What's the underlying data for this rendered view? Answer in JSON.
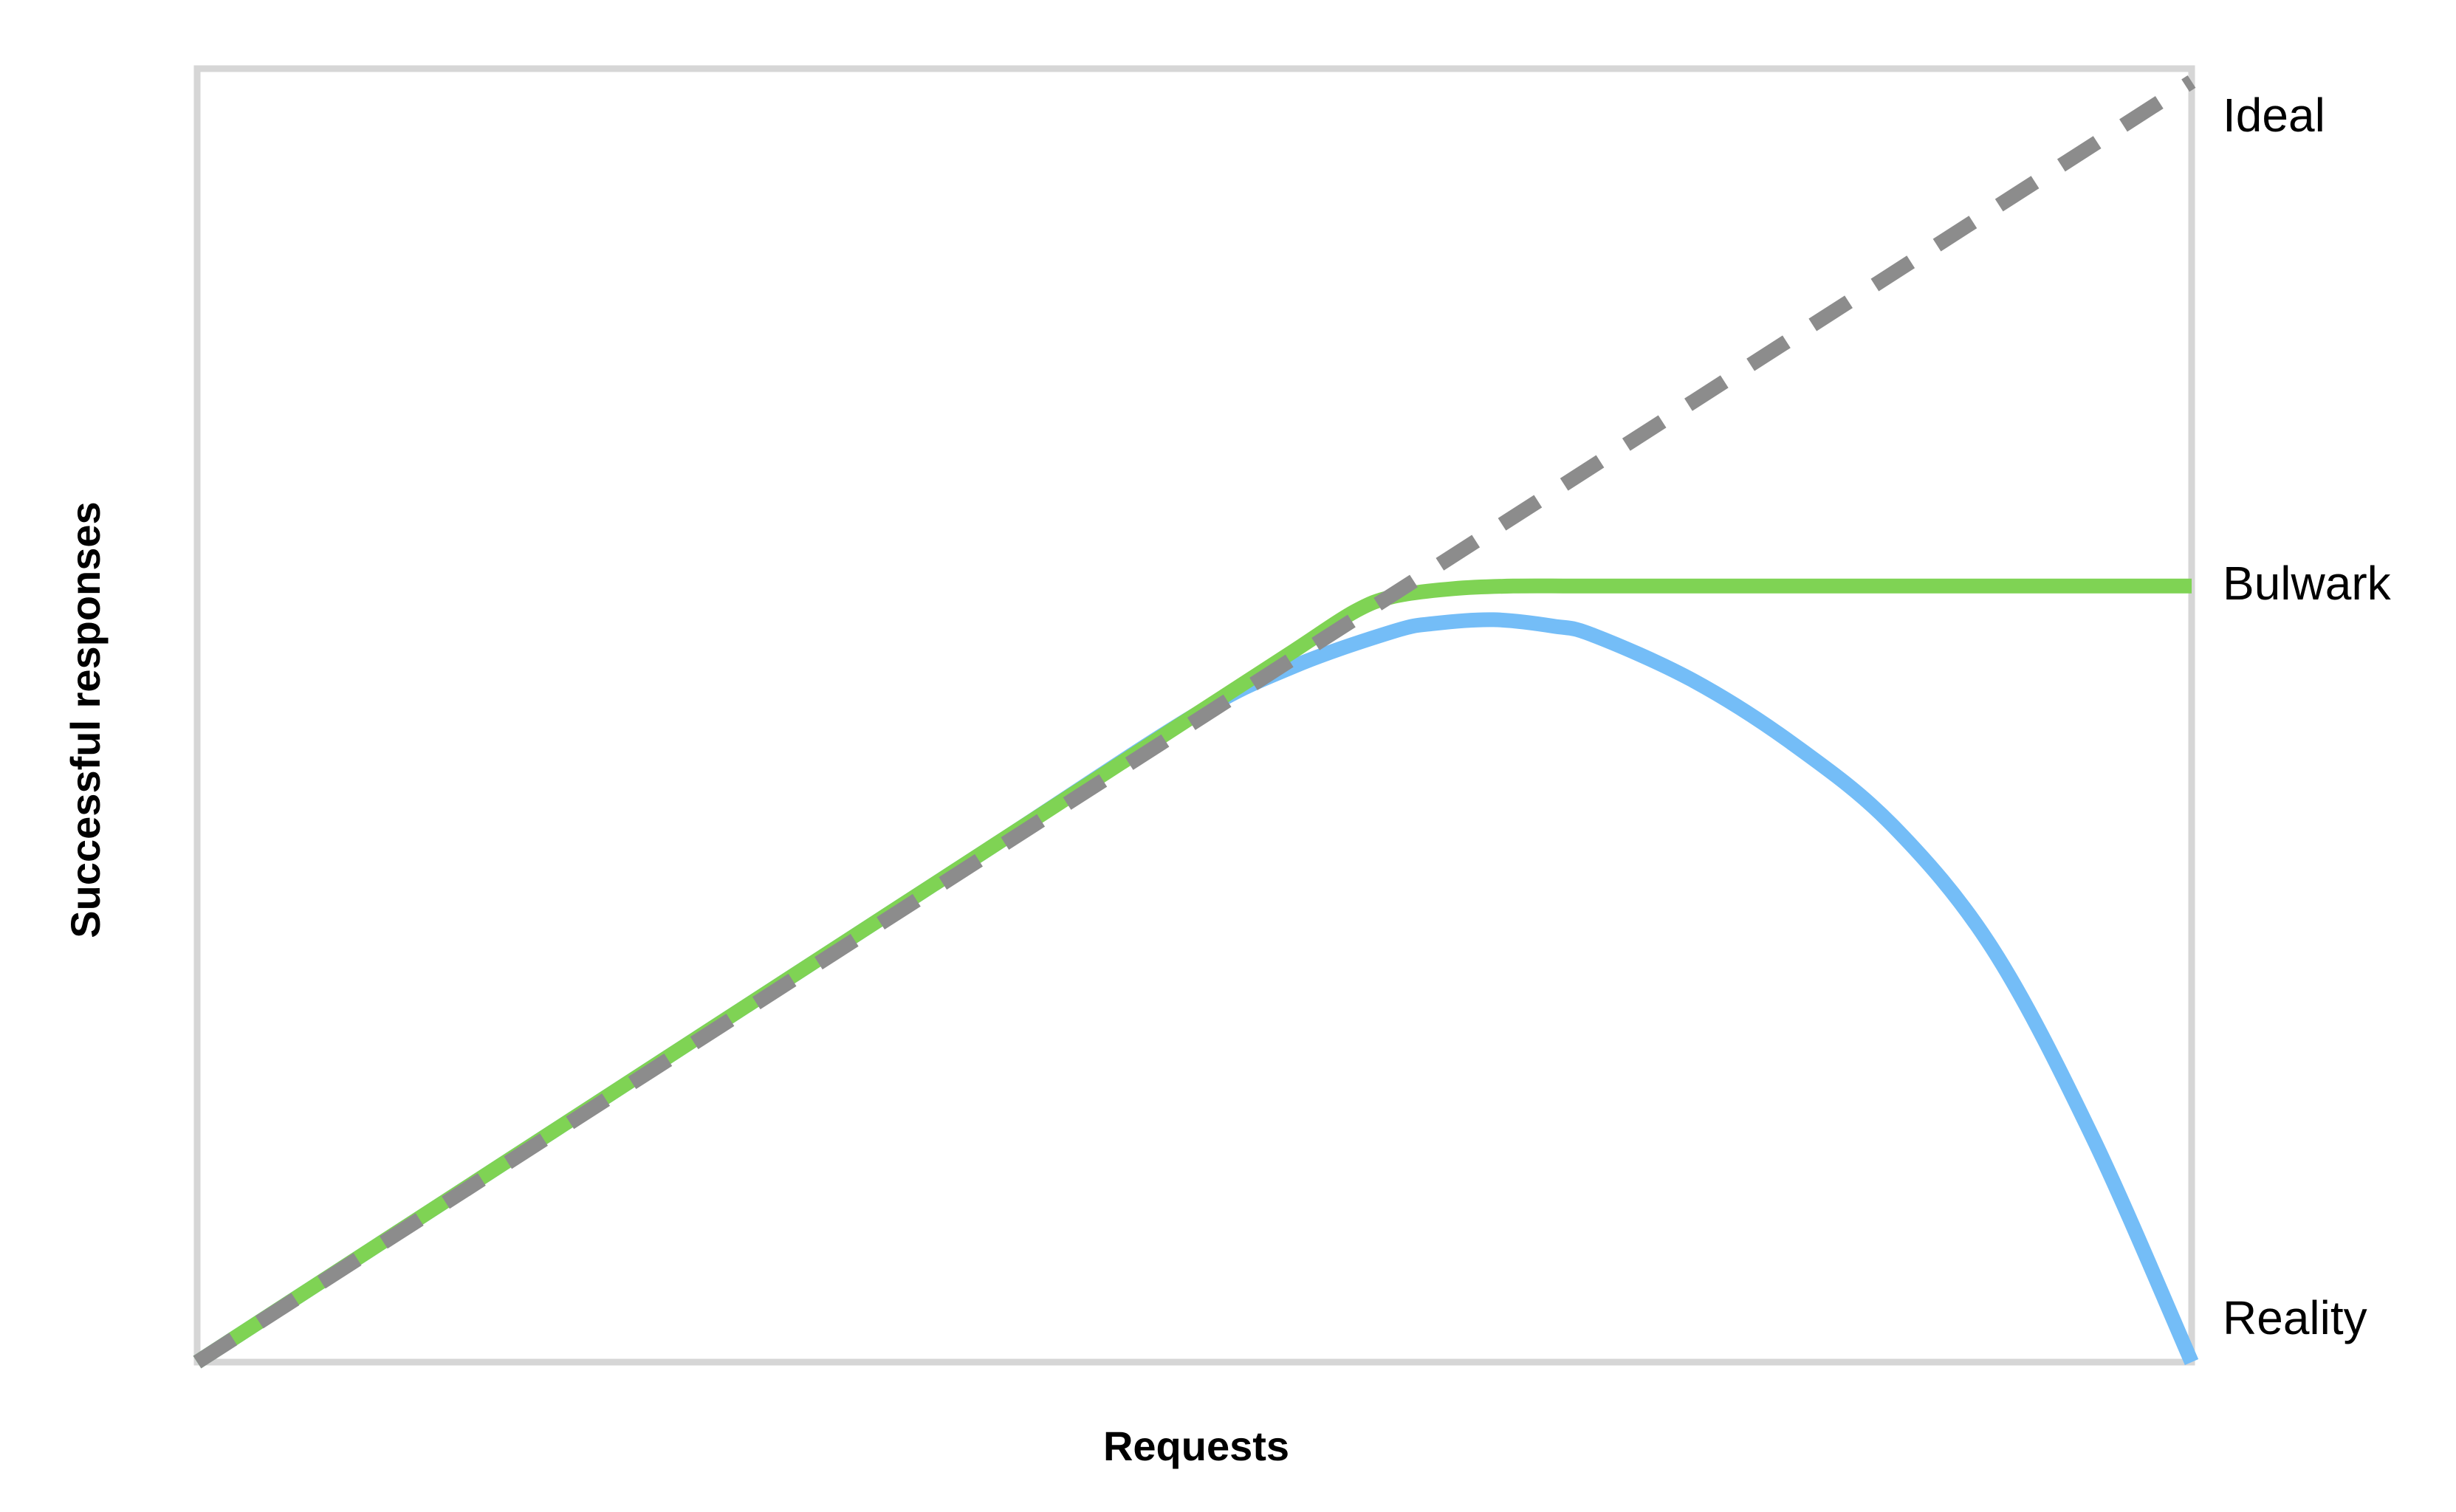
{
  "chart_data": {
    "type": "line",
    "xlabel": "Requests",
    "ylabel": "Successful responses",
    "xlim": [
      0,
      100
    ],
    "ylim": [
      0,
      100
    ],
    "grid": false,
    "legend": "direct-labels-right",
    "frame_color": "#d6d6d6",
    "series": [
      {
        "name": "Reality",
        "color": "#74bdf7",
        "dash": false,
        "x": [
          0,
          10,
          20,
          30,
          40,
          50,
          55,
          60,
          62,
          65,
          68,
          70,
          75,
          80,
          85,
          90,
          95,
          100
        ],
        "y": [
          0,
          10,
          20,
          30,
          40,
          50,
          53.8,
          56.5,
          57.1,
          57.4,
          56.9,
          56.2,
          52.7,
          47.8,
          41.5,
          32.0,
          17.5,
          0
        ]
      },
      {
        "name": "Bulwark",
        "color": "#7fd354",
        "dash": false,
        "x": [
          0,
          10,
          20,
          30,
          40,
          50,
          55,
          58,
          60,
          63,
          66,
          70,
          80,
          90,
          100
        ],
        "y": [
          0,
          10,
          20,
          30,
          40,
          50,
          55,
          58,
          59.2,
          59.8,
          60,
          60,
          60,
          60,
          60
        ]
      },
      {
        "name": "Ideal",
        "color": "#8c8c8c",
        "dash": true,
        "x": [
          0,
          100
        ],
        "y": [
          0,
          99
        ]
      }
    ]
  }
}
